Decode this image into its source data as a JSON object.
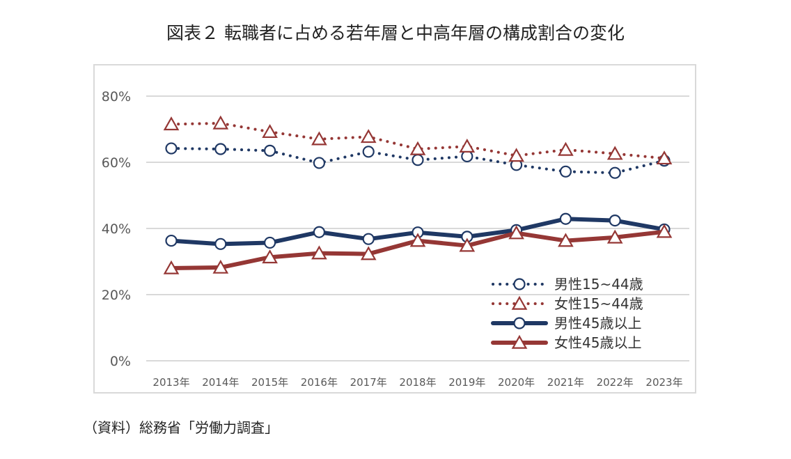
{
  "title": "図表２ 転職者に占める若年層と中高年層の構成割合の変化",
  "source": "（資料）総務省「労働力調査」",
  "chart_data": {
    "type": "line",
    "x": [
      "2013年",
      "2014年",
      "2015年",
      "2016年",
      "2017年",
      "2018年",
      "2019年",
      "2020年",
      "2021年",
      "2022年",
      "2023年"
    ],
    "ylim": [
      0,
      80
    ],
    "yticks": [
      0,
      20,
      40,
      60,
      80
    ],
    "ytick_labels": [
      "0%",
      "20%",
      "40%",
      "60%",
      "80%"
    ],
    "grid": true,
    "legend_position": "bottom-right",
    "series": [
      {
        "name": "男性15~44歳",
        "color": "#1f3864",
        "style": "dotted",
        "marker": "circle",
        "values": [
          64.2,
          64.0,
          63.5,
          59.8,
          63.2,
          60.7,
          61.8,
          59.2,
          57.2,
          56.8,
          60.5
        ]
      },
      {
        "name": "女性15~44歳",
        "color": "#953735",
        "style": "dotted",
        "marker": "triangle",
        "values": [
          71.5,
          71.8,
          69.2,
          67.0,
          67.7,
          64.0,
          64.8,
          62.0,
          63.8,
          62.6,
          61.2
        ]
      },
      {
        "name": "男性45歳以上",
        "color": "#1f3864",
        "style": "solid",
        "marker": "circle",
        "values": [
          36.3,
          35.3,
          35.7,
          38.9,
          36.8,
          38.8,
          37.5,
          39.5,
          42.9,
          42.4,
          39.7
        ]
      },
      {
        "name": "女性45歳以上",
        "color": "#953735",
        "style": "solid",
        "marker": "triangle",
        "values": [
          28.0,
          28.2,
          31.3,
          32.5,
          32.3,
          36.3,
          34.8,
          38.6,
          36.3,
          37.3,
          39.0
        ]
      }
    ]
  }
}
